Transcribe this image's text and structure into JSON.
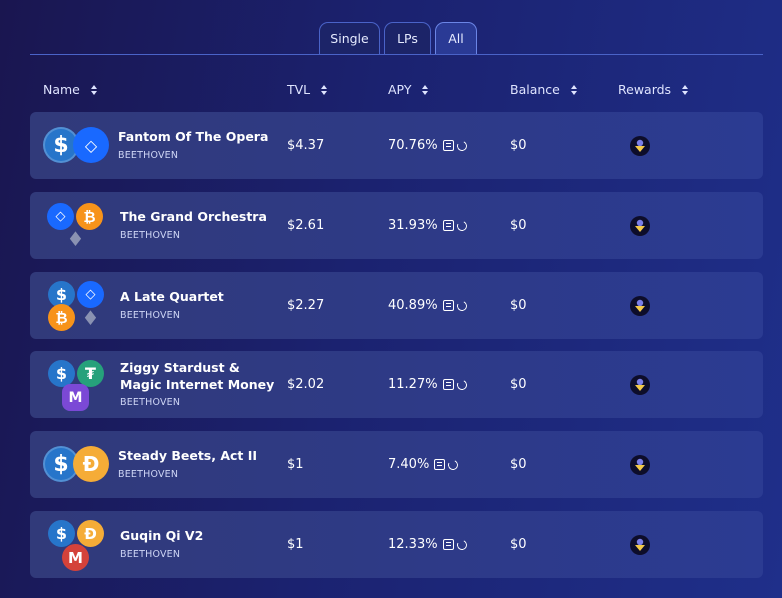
{
  "tabs": [
    {
      "label": "Single",
      "active": false
    },
    {
      "label": "LPs",
      "active": false
    },
    {
      "label": "All",
      "active": true
    }
  ],
  "columns": {
    "name": "Name",
    "tvl": "TVL",
    "apy": "APY",
    "balance": "Balance",
    "rewards": "Rewards"
  },
  "rows": [
    {
      "name": "Fantom Of The Opera",
      "platform": "BEETHOVEN",
      "tvl": "$4.37",
      "apy": "70.76%",
      "balance": "$0",
      "tokens": [
        "usdc",
        "ftm"
      ],
      "reward_icon": "beets-icon"
    },
    {
      "name": "The Grand Orchestra",
      "platform": "BEETHOVEN",
      "tvl": "$2.61",
      "apy": "31.93%",
      "balance": "$0",
      "tokens": [
        "ftm",
        "btc",
        "eth"
      ],
      "reward_icon": "beets-icon"
    },
    {
      "name": "A Late Quartet",
      "platform": "BEETHOVEN",
      "tvl": "$2.27",
      "apy": "40.89%",
      "balance": "$0",
      "tokens": [
        "usdc",
        "ftm",
        "btc",
        "eth"
      ],
      "reward_icon": "beets-icon"
    },
    {
      "name_line1": "Ziggy Stardust &",
      "name_line2": "Magic Internet Money",
      "platform": "BEETHOVEN",
      "tvl": "$2.02",
      "apy": "11.27%",
      "balance": "$0",
      "tokens": [
        "usdc",
        "usdt",
        "mim"
      ],
      "reward_icon": "beets-icon"
    },
    {
      "name": "Steady Beets, Act II",
      "platform": "BEETHOVEN",
      "tvl": "$1",
      "apy": "7.40%",
      "balance": "$0",
      "tokens": [
        "usdc",
        "dai"
      ],
      "reward_icon": "beets-icon"
    },
    {
      "name": "Guqin Qi V2",
      "platform": "BEETHOVEN",
      "tvl": "$1",
      "apy": "12.33%",
      "balance": "$0",
      "tokens": [
        "usdc",
        "dai",
        "mai"
      ],
      "reward_icon": "beets-icon"
    }
  ],
  "colors": {
    "usdc": "#2775ca",
    "ftm": "#1969ff",
    "btc": "#f7931a",
    "eth": "#8a92b2",
    "dai": "#f5ac37",
    "mim": "#7b49d6",
    "usdt": "#26a17b",
    "mai": "#d4423a",
    "accent": "#4a63c8"
  }
}
